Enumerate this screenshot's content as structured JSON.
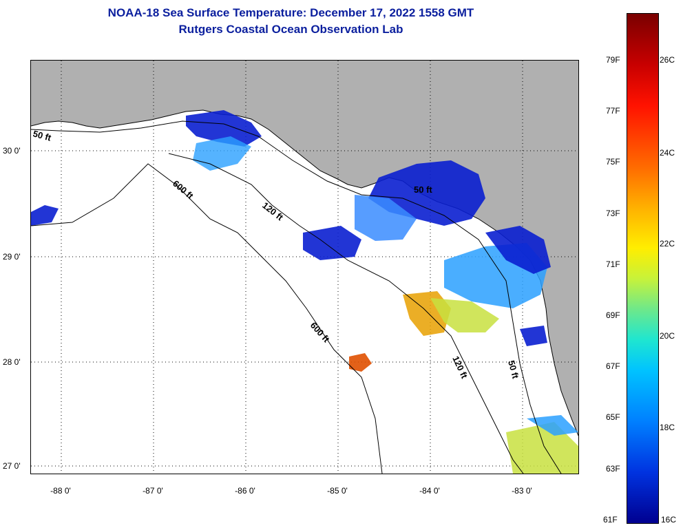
{
  "title": {
    "line1": "NOAA-18 Sea Surface Temperature:  December 17, 2022 1558 GMT",
    "line2": "Rutgers Coastal Ocean Observation Lab"
  },
  "map": {
    "lat_labels": [
      "30 0'",
      "29 0'",
      "28 0'",
      "27 0'"
    ],
    "lon_labels": [
      "-88 0'",
      "-87 0'",
      "-86 0'",
      "-85 0'",
      "-84 0'",
      "-83 0'"
    ],
    "contour_labels": [
      "50 ft",
      "600 ft",
      "120 ft",
      "50 ft",
      "600 ft",
      "120 ft",
      "50 ft"
    ],
    "colors": {
      "land": "#b0b0b0",
      "water": "#ffffff",
      "cold": "#0a1fd0",
      "mid": "#2aa0ff",
      "warm": "#e88000"
    }
  },
  "colorbar": {
    "fahrenheit": [
      "79F",
      "77F",
      "75F",
      "73F",
      "71F",
      "69F",
      "67F",
      "65F",
      "63F",
      "61F"
    ],
    "celsius": [
      "26C",
      "24C",
      "22C",
      "20C",
      "18C",
      "16C"
    ]
  }
}
